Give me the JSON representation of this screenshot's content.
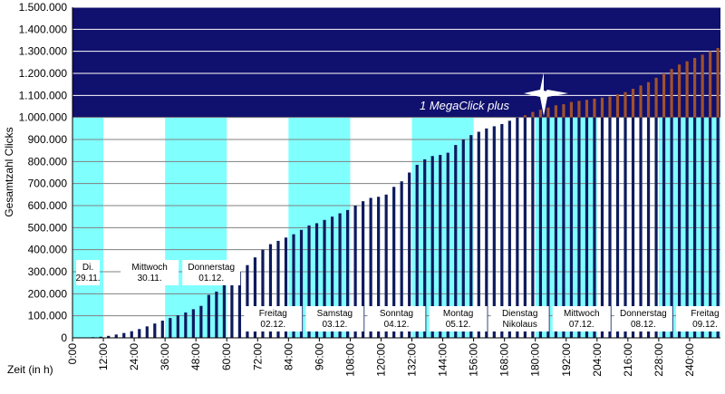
{
  "chart_data": {
    "type": "bar",
    "ylabel": "Gesamtzahl Clicks",
    "xlabel": "Zeit (in h)",
    "ylim": [
      0,
      1500000
    ],
    "xlim": [
      0,
      252
    ],
    "y_ticks": [
      "0",
      "100.000",
      "200.000",
      "300.000",
      "400.000",
      "500.000",
      "600.000",
      "700.000",
      "800.000",
      "900.000",
      "1.000.000",
      "1.100.000",
      "1.200.000",
      "1.300.000",
      "1.400.000",
      "1.500.000"
    ],
    "x_ticks": [
      "0:00",
      "12:00",
      "24:00",
      "36:00",
      "48:00",
      "60:00",
      "72:00",
      "84:00",
      "96:00",
      "108:00",
      "120:00",
      "132:00",
      "144:00",
      "156:00",
      "168:00",
      "180:00",
      "192:00",
      "204:00",
      "216:00",
      "228:00",
      "240:00"
    ],
    "grid": true,
    "colors": {
      "bar": "#0d1a5e",
      "bar_over": "#a0522d",
      "day_band": "#80ffff",
      "mega_band": "#10106e",
      "gridline": "#808080"
    },
    "threshold": {
      "value": 1000000,
      "label": "1 MegaClick plus"
    },
    "day_labels": [
      {
        "lines": [
          "Di.",
          "29.11."
        ],
        "band": true
      },
      {
        "lines": [
          "Mittwoch",
          "30.11."
        ],
        "band": false
      },
      {
        "lines": [
          "Donnerstag",
          "01.12."
        ],
        "band": true
      },
      {
        "lines": [
          "Freitag",
          "02.12."
        ],
        "band": false
      },
      {
        "lines": [
          "Samstag",
          "03.12."
        ],
        "band": true
      },
      {
        "lines": [
          "Sonntag",
          "04.12."
        ],
        "band": false
      },
      {
        "lines": [
          "Montag",
          "05.12."
        ],
        "band": true
      },
      {
        "lines": [
          "Dienstag",
          "Nikolaus"
        ],
        "band": false
      },
      {
        "lines": [
          "Mittwoch",
          "07.12."
        ],
        "band": true
      },
      {
        "lines": [
          "Donnerstag",
          "08.12."
        ],
        "band": false
      },
      {
        "lines": [
          "Freitag",
          "09.12."
        ],
        "band": true
      }
    ],
    "series": [
      {
        "x": [
          2,
          5,
          8,
          11,
          14,
          17,
          20,
          23,
          26,
          29,
          32,
          35,
          38,
          41,
          44,
          47,
          50,
          53,
          56,
          59,
          62,
          65,
          68,
          71,
          74,
          77,
          80,
          83,
          86,
          89,
          92,
          95,
          98,
          101,
          104,
          107,
          110,
          113,
          116,
          119,
          122,
          125,
          128,
          131,
          134,
          137,
          140,
          143,
          146,
          149,
          152,
          155,
          158,
          161,
          164,
          167,
          170,
          173,
          176,
          179,
          182,
          185,
          188,
          191,
          194,
          197,
          200,
          203,
          206,
          209,
          212,
          215,
          218,
          221,
          224,
          227,
          230,
          233,
          236,
          239,
          242,
          245,
          248,
          251
        ],
        "values": [
          1000,
          2000,
          3000,
          5000,
          9000,
          15000,
          22000,
          30000,
          40000,
          52000,
          65000,
          78000,
          90000,
          102000,
          115000,
          130000,
          145000,
          195000,
          210000,
          240000,
          270000,
          300000,
          330000,
          365000,
          400000,
          425000,
          440000,
          455000,
          470000,
          490000,
          510000,
          520000,
          535000,
          550000,
          565000,
          580000,
          600000,
          620000,
          635000,
          640000,
          650000,
          685000,
          710000,
          750000,
          785000,
          810000,
          825000,
          830000,
          840000,
          875000,
          900000,
          920000,
          935000,
          950000,
          960000,
          970000,
          985000,
          1000000,
          1010000,
          1025000,
          1035000,
          1045000,
          1055000,
          1060000,
          1070000,
          1075000,
          1080000,
          1085000,
          1090000,
          1095000,
          1105000,
          1115000,
          1130000,
          1145000,
          1160000,
          1180000,
          1200000,
          1220000,
          1240000,
          1255000,
          1270000,
          1285000,
          1300000,
          1315000
        ]
      }
    ]
  }
}
